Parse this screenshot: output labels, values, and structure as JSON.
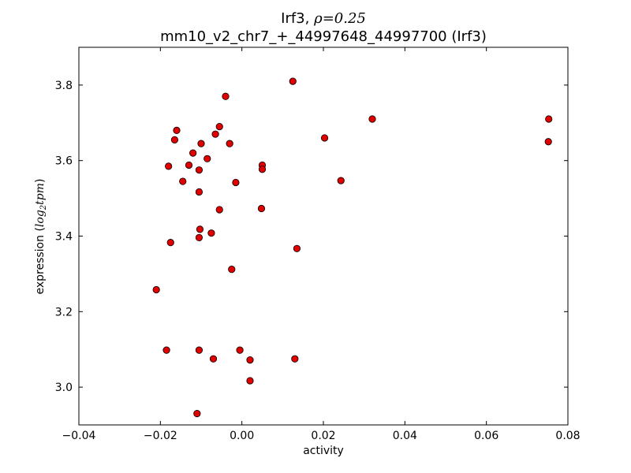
{
  "chart_data": {
    "type": "scatter",
    "title_gene": "Irf3, ",
    "title_rho_symbol": "ρ",
    "title_rho_value": "=0.25",
    "subtitle": "mm10_v2_chr7_+_44997648_44997700 (Irf3)",
    "xlabel": "activity",
    "ylabel_prefix": "expression (",
    "ylabel_math": "log",
    "ylabel_sub": "2",
    "ylabel_math2": "tpm",
    "ylabel_suffix": ")",
    "xlim": [
      -0.04,
      0.08
    ],
    "ylim": [
      2.9,
      3.9
    ],
    "x_ticks": [
      -0.04,
      -0.02,
      0.0,
      0.02,
      0.04,
      0.06,
      0.08
    ],
    "x_tick_labels": [
      "−0.04",
      "−0.02",
      "0.00",
      "0.02",
      "0.04",
      "0.06",
      "0.08"
    ],
    "y_ticks": [
      3.0,
      3.2,
      3.4,
      3.6,
      3.8
    ],
    "y_tick_labels": [
      "3.0",
      "3.2",
      "3.4",
      "3.6",
      "3.8"
    ],
    "grid": false,
    "marker_color": "#e00000",
    "marker_edge": "#000000",
    "points": [
      {
        "x": 0.0125,
        "y": 3.81
      },
      {
        "x": -0.004,
        "y": 3.77
      },
      {
        "x": 0.032,
        "y": 3.71
      },
      {
        "x": 0.0753,
        "y": 3.71
      },
      {
        "x": 0.0752,
        "y": 3.65
      },
      {
        "x": -0.0055,
        "y": 3.69
      },
      {
        "x": -0.016,
        "y": 3.68
      },
      {
        "x": -0.0065,
        "y": 3.67
      },
      {
        "x": -0.0165,
        "y": 3.655
      },
      {
        "x": 0.0203,
        "y": 3.66
      },
      {
        "x": -0.003,
        "y": 3.645
      },
      {
        "x": -0.01,
        "y": 3.645
      },
      {
        "x": -0.012,
        "y": 3.62
      },
      {
        "x": -0.0085,
        "y": 3.605
      },
      {
        "x": -0.013,
        "y": 3.588
      },
      {
        "x": -0.018,
        "y": 3.585
      },
      {
        "x": 0.005,
        "y": 3.588
      },
      {
        "x": 0.005,
        "y": 3.577
      },
      {
        "x": -0.0105,
        "y": 3.575
      },
      {
        "x": -0.0145,
        "y": 3.545
      },
      {
        "x": -0.0015,
        "y": 3.542
      },
      {
        "x": 0.0243,
        "y": 3.547
      },
      {
        "x": -0.0105,
        "y": 3.517
      },
      {
        "x": -0.0055,
        "y": 3.47
      },
      {
        "x": 0.0048,
        "y": 3.473
      },
      {
        "x": -0.0103,
        "y": 3.418
      },
      {
        "x": -0.0075,
        "y": 3.408
      },
      {
        "x": -0.0105,
        "y": 3.396
      },
      {
        "x": -0.0175,
        "y": 3.383
      },
      {
        "x": 0.0135,
        "y": 3.367
      },
      {
        "x": -0.0025,
        "y": 3.312
      },
      {
        "x": -0.021,
        "y": 3.258
      },
      {
        "x": -0.0185,
        "y": 3.098
      },
      {
        "x": -0.0105,
        "y": 3.098
      },
      {
        "x": -0.0005,
        "y": 3.098
      },
      {
        "x": -0.007,
        "y": 3.075
      },
      {
        "x": 0.002,
        "y": 3.072
      },
      {
        "x": 0.013,
        "y": 3.075
      },
      {
        "x": 0.002,
        "y": 3.017
      },
      {
        "x": -0.011,
        "y": 2.93
      }
    ]
  }
}
